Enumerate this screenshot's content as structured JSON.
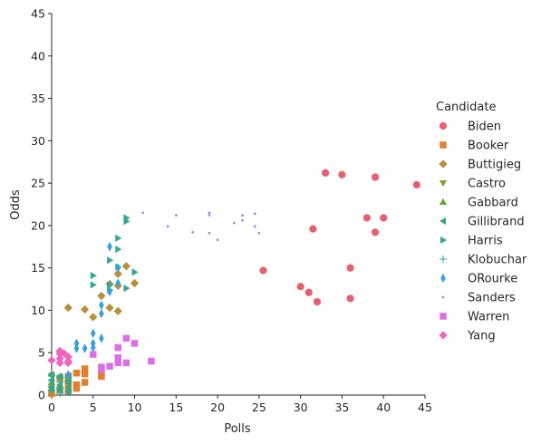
{
  "chart_data": {
    "type": "scatter",
    "xlabel": "Polls",
    "ylabel": "Odds",
    "xlim": [
      0,
      45
    ],
    "ylim": [
      0,
      45
    ],
    "xticks": [
      0,
      5,
      10,
      15,
      20,
      25,
      30,
      35,
      40,
      45
    ],
    "yticks": [
      0,
      5,
      10,
      15,
      20,
      25,
      30,
      35,
      40,
      45
    ],
    "grid": false,
    "legend_title": "Candidate",
    "legend_position": "right",
    "series": [
      {
        "name": "Biden",
        "color": "#e8606f",
        "marker": "circle",
        "points": [
          [
            33,
            26.2
          ],
          [
            35,
            26
          ],
          [
            39,
            25.7
          ],
          [
            44,
            24.8
          ],
          [
            38,
            20.9
          ],
          [
            40,
            20.9
          ],
          [
            31.5,
            19.6
          ],
          [
            39,
            19.2
          ],
          [
            25.5,
            14.7
          ],
          [
            36,
            15
          ],
          [
            30,
            12.8
          ],
          [
            31,
            12.1
          ],
          [
            32,
            11
          ],
          [
            36,
            11.4
          ]
        ]
      },
      {
        "name": "Booker",
        "color": "#e0802e",
        "marker": "square",
        "points": [
          [
            4,
            3.1
          ],
          [
            3,
            2.6
          ],
          [
            4,
            2.5
          ],
          [
            6,
            2.6
          ],
          [
            2,
            2.2
          ],
          [
            1,
            2
          ],
          [
            4,
            1.5
          ],
          [
            3,
            1.2
          ],
          [
            2,
            1.3
          ],
          [
            3,
            0.8
          ],
          [
            1,
            0.7
          ],
          [
            2,
            0.5
          ],
          [
            0,
            0.2
          ],
          [
            6,
            2.2
          ]
        ]
      },
      {
        "name": "Buttigieg",
        "color": "#b5913a",
        "marker": "diamond",
        "points": [
          [
            9,
            15.2
          ],
          [
            8,
            14.3
          ],
          [
            10,
            13.2
          ],
          [
            8,
            12.9
          ],
          [
            7,
            13.1
          ],
          [
            6,
            11.7
          ],
          [
            2,
            10.3
          ],
          [
            4,
            10.1
          ],
          [
            7,
            10.3
          ],
          [
            8,
            9.9
          ],
          [
            5,
            9.2
          ]
        ]
      },
      {
        "name": "Castro",
        "color": "#919b32",
        "marker": "triangle-down",
        "points": [
          [
            0,
            2.3
          ],
          [
            1,
            1.8
          ],
          [
            0,
            1
          ],
          [
            1,
            0.5
          ],
          [
            2,
            1.5
          ],
          [
            0,
            0.4
          ]
        ]
      },
      {
        "name": "Gabbard",
        "color": "#61a935",
        "marker": "triangle-up",
        "points": [
          [
            0,
            2.5
          ],
          [
            1,
            2.2
          ],
          [
            0,
            1.5
          ],
          [
            1,
            1
          ],
          [
            2,
            2
          ],
          [
            0,
            0.8
          ],
          [
            1,
            0.6
          ]
        ]
      },
      {
        "name": "Gillibrand",
        "color": "#35a675",
        "marker": "triangle-left",
        "points": [
          [
            0,
            2.4
          ],
          [
            1,
            2.2
          ],
          [
            2,
            2.3
          ],
          [
            0,
            1.8
          ],
          [
            2,
            1.5
          ],
          [
            1,
            1.2
          ],
          [
            0,
            0.9
          ],
          [
            2,
            0.9
          ],
          [
            1,
            0.6
          ],
          [
            2,
            0.4
          ]
        ]
      },
      {
        "name": "Harris",
        "color": "#36a796",
        "marker": "triangle-right",
        "points": [
          [
            9,
            20.9
          ],
          [
            9,
            20.5
          ],
          [
            8,
            18.5
          ],
          [
            8,
            17.2
          ],
          [
            7,
            15.9
          ],
          [
            8,
            15.1
          ],
          [
            10,
            14.5
          ],
          [
            5,
            14.1
          ],
          [
            5,
            13
          ],
          [
            7,
            13
          ],
          [
            9,
            12.6
          ],
          [
            7,
            12.4
          ]
        ]
      },
      {
        "name": "Klobuchar",
        "color": "#38a3a7",
        "marker": "plus",
        "points": [
          [
            0,
            2.3
          ],
          [
            1,
            2.1
          ],
          [
            2,
            2.1
          ],
          [
            0,
            1.7
          ],
          [
            1,
            1.5
          ],
          [
            2,
            1.6
          ],
          [
            0,
            1
          ],
          [
            1,
            0.8
          ],
          [
            0,
            0.5
          ],
          [
            2,
            0.5
          ],
          [
            1,
            0.2
          ]
        ]
      },
      {
        "name": "ORourke",
        "color": "#3aa0dd",
        "marker": "thin-diamond",
        "points": [
          [
            7,
            17.5
          ],
          [
            8,
            15
          ],
          [
            8,
            13.2
          ],
          [
            7,
            12.2
          ],
          [
            6,
            10.6
          ],
          [
            6,
            9.6
          ],
          [
            5,
            7.3
          ],
          [
            6,
            6.7
          ],
          [
            3,
            6.1
          ],
          [
            5,
            6.1
          ],
          [
            5,
            5.6
          ],
          [
            3,
            5.5
          ],
          [
            4,
            5.5
          ],
          [
            2,
            2.4
          ]
        ]
      },
      {
        "name": "Sanders",
        "color": "#a08be4",
        "marker": "point",
        "points": [
          [
            11,
            21.5
          ],
          [
            15,
            21.2
          ],
          [
            19,
            21.5
          ],
          [
            24.5,
            21.4
          ],
          [
            19,
            21.2
          ],
          [
            23,
            21.2
          ],
          [
            23,
            20.6
          ],
          [
            22,
            20.3
          ],
          [
            14,
            19.9
          ],
          [
            24.5,
            19.9
          ],
          [
            17,
            19.2
          ],
          [
            19,
            19.1
          ],
          [
            25,
            19.1
          ],
          [
            20,
            18.3
          ]
        ]
      },
      {
        "name": "Warren",
        "color": "#db70e6",
        "marker": "square",
        "points": [
          [
            9,
            6.7
          ],
          [
            10,
            6.1
          ],
          [
            8,
            5.6
          ],
          [
            5,
            4.8
          ],
          [
            8,
            4.4
          ],
          [
            12,
            4
          ],
          [
            8,
            3.8
          ],
          [
            9,
            3.8
          ],
          [
            7,
            3.4
          ],
          [
            6,
            3.3
          ],
          [
            6,
            3
          ]
        ]
      },
      {
        "name": "Yang",
        "color": "#ec65c0",
        "marker": "diamond",
        "points": [
          [
            1,
            5.2
          ],
          [
            1,
            4.9
          ],
          [
            1.5,
            4.9
          ],
          [
            2,
            4.5
          ],
          [
            1,
            4.3
          ],
          [
            0,
            4.1
          ],
          [
            2,
            4
          ],
          [
            1,
            3.8
          ],
          [
            2,
            3.8
          ]
        ]
      }
    ]
  }
}
